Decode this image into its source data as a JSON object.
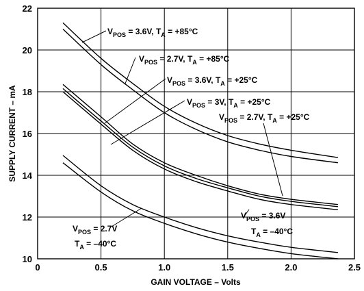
{
  "chart_data": {
    "type": "line",
    "xlabel": "GAIN VOLTAGE – Volts",
    "ylabel": "SUPPLY CURRENT – mA",
    "xlim": [
      0,
      2.5
    ],
    "ylim": [
      10,
      22
    ],
    "x_ticks": [
      "0",
      "0.5",
      "1.0",
      "1.5",
      "2.0",
      "2.5"
    ],
    "y_ticks": [
      "10",
      "12",
      "14",
      "16",
      "18",
      "20",
      "22"
    ],
    "grid": true,
    "series": [
      {
        "name": "VPOS = 3.6V, TA = +85°C",
        "x": [
          0.2,
          0.5,
          0.75,
          1.0,
          1.25,
          1.5,
          1.75,
          2.0,
          2.37
        ],
        "values": [
          21.3,
          19.6,
          18.4,
          17.3,
          16.5,
          15.9,
          15.5,
          15.2,
          14.85
        ]
      },
      {
        "name": "VPOS = 2.7V, TA = +85°C",
        "x": [
          0.2,
          0.5,
          0.75,
          1.0,
          1.25,
          1.5,
          1.75,
          2.0,
          2.37
        ],
        "values": [
          21.0,
          19.3,
          18.1,
          17.0,
          16.2,
          15.6,
          15.2,
          14.9,
          14.6
        ]
      },
      {
        "name": "VPOS = 3.6V, TA = +25°C",
        "x": [
          0.2,
          0.5,
          0.75,
          1.0,
          1.25,
          1.5,
          1.75,
          2.0,
          2.37
        ],
        "values": [
          18.35,
          16.8,
          15.5,
          14.6,
          14.0,
          13.5,
          13.1,
          12.85,
          12.6
        ]
      },
      {
        "name": "VPOS = 3V, TA = +25°C",
        "x": [
          0.2,
          0.5,
          0.75,
          1.0,
          1.25,
          1.5,
          1.75,
          2.0,
          2.37
        ],
        "values": [
          18.15,
          16.6,
          15.35,
          14.45,
          13.85,
          13.4,
          13.0,
          12.75,
          12.5
        ]
      },
      {
        "name": "VPOS = 2.7V, TA = +25°C",
        "x": [
          0.2,
          0.5,
          0.75,
          1.0,
          1.25,
          1.5,
          1.75,
          2.0,
          2.37
        ],
        "values": [
          18.0,
          16.45,
          15.2,
          14.3,
          13.7,
          13.25,
          12.85,
          12.6,
          12.35
        ]
      },
      {
        "name": "VPOS = 3.6V, TA = –40°C",
        "x": [
          0.2,
          0.5,
          0.75,
          1.0,
          1.25,
          1.5,
          1.75,
          2.0,
          2.37
        ],
        "values": [
          14.95,
          13.5,
          12.6,
          12.0,
          11.5,
          11.1,
          10.8,
          10.55,
          10.3
        ]
      },
      {
        "name": "VPOS = 2.7V, TA = –40°C",
        "x": [
          0.2,
          0.5,
          0.75,
          1.0,
          1.25,
          1.5,
          1.75,
          2.0,
          2.37
        ],
        "values": [
          14.6,
          13.2,
          12.3,
          11.7,
          11.2,
          10.8,
          10.5,
          10.25,
          10.0
        ]
      }
    ],
    "annotations": [
      {
        "id": "a85_36",
        "v": "V",
        "vsub": "POS",
        "mid": " = 3.6V, T",
        "tsub": "A",
        "rest": " = +85°C"
      },
      {
        "id": "a85_27",
        "v": "V",
        "vsub": "POS",
        "mid": " = 2.7V, T",
        "tsub": "A",
        "rest": " = +85°C"
      },
      {
        "id": "a25_36",
        "v": "V",
        "vsub": "POS",
        "mid": " = 3.6V, T",
        "tsub": "A",
        "rest": " = +25°C"
      },
      {
        "id": "a25_3",
        "v": "V",
        "vsub": "POS",
        "mid": " = 3V, T",
        "tsub": "A",
        "rest": " = +25°C"
      },
      {
        "id": "a25_27",
        "v": "V",
        "vsub": "POS",
        "mid": " = 2.7V, T",
        "tsub": "A",
        "rest": " = +25°C"
      },
      {
        "id": "am40_36_l1",
        "v": "V",
        "vsub": "POS",
        "mid": " = 3.6V",
        "tsub": "",
        "rest": ""
      },
      {
        "id": "am40_36_l2",
        "v": "T",
        "vsub": "A",
        "mid": " = –40°C",
        "tsub": "",
        "rest": ""
      },
      {
        "id": "am40_27_l1",
        "v": "V",
        "vsub": "POS",
        "mid": " = 2.7V",
        "tsub": "",
        "rest": ""
      },
      {
        "id": "am40_27_l2",
        "v": "T",
        "vsub": "A",
        "mid": " = –40°C",
        "tsub": "",
        "rest": ""
      }
    ]
  }
}
